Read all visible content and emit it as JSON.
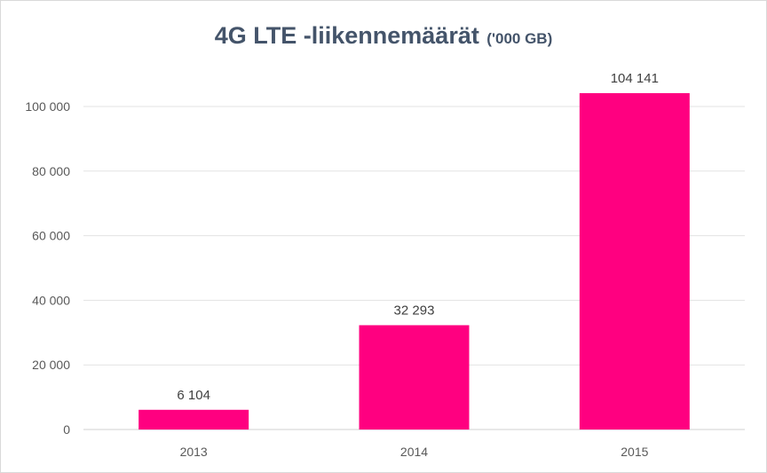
{
  "chart_data": {
    "type": "bar",
    "title": "4G LTE -liikennemäärät",
    "subtitle": "('000 GB)",
    "categories": [
      "2013",
      "2014",
      "2015"
    ],
    "values": [
      6104,
      32293,
      104141
    ],
    "data_labels": [
      "6 104",
      "32 293",
      "104 141"
    ],
    "yticks": [
      0,
      20000,
      40000,
      60000,
      80000,
      100000
    ],
    "ytick_labels": [
      "0",
      "20 000",
      "40 000",
      "60 000",
      "80 000",
      "100 000"
    ],
    "ylim": [
      0,
      110000
    ],
    "grid": true,
    "bar_color": "#ff0080",
    "xlabel": "",
    "ylabel": ""
  }
}
